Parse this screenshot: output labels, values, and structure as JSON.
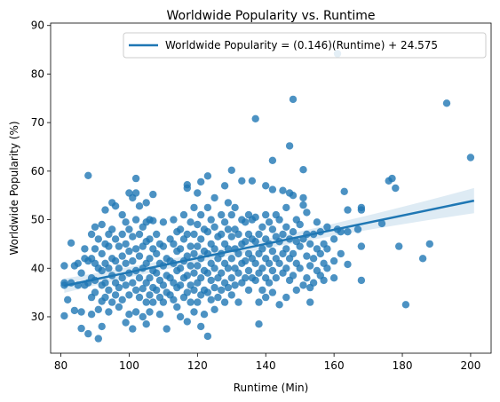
{
  "chart_data": {
    "type": "scatter",
    "title": "Worldwide Popularity vs. Runtime",
    "xlabel": "Runtime (Min)",
    "ylabel": "Worldwide Popularity (%)",
    "xlim": [
      77,
      206
    ],
    "ylim": [
      22.5,
      90.5
    ],
    "xticks": [
      80,
      100,
      120,
      140,
      160,
      180,
      200
    ],
    "yticks": [
      30,
      40,
      50,
      60,
      70,
      80,
      90
    ],
    "grid": false,
    "legend_position": "top-right",
    "colors": {
      "points": "#1f77b4",
      "line": "#1f77b4",
      "band": "#1f77b4"
    },
    "series": [
      {
        "name": "Worldwide Popularity = (0.146)(Runtime) + 24.575",
        "kind": "regression",
        "slope": 0.146,
        "intercept": 24.575,
        "x_range": [
          81,
          201
        ],
        "ci_half_width_low": 0.9,
        "ci_half_width_high": 2.6
      }
    ],
    "points": [
      [
        81,
        40.5
      ],
      [
        81,
        37
      ],
      [
        81,
        36.5
      ],
      [
        81,
        30.2
      ],
      [
        82,
        33.5
      ],
      [
        83,
        45.2
      ],
      [
        83,
        37
      ],
      [
        84,
        40.5
      ],
      [
        84,
        31.3
      ],
      [
        85,
        41
      ],
      [
        85,
        36.5
      ],
      [
        86,
        39
      ],
      [
        86,
        31
      ],
      [
        86,
        27.6
      ],
      [
        87,
        44
      ],
      [
        87,
        42
      ],
      [
        87,
        36.5
      ],
      [
        88,
        59.1
      ],
      [
        88,
        41.5
      ],
      [
        88,
        37
      ],
      [
        88,
        26.5
      ],
      [
        89,
        47
      ],
      [
        89,
        42
      ],
      [
        89,
        38
      ],
      [
        89,
        34
      ],
      [
        89,
        30.5
      ],
      [
        90,
        48.5
      ],
      [
        90,
        44
      ],
      [
        90,
        41
      ],
      [
        90,
        37.5
      ],
      [
        90,
        35
      ],
      [
        91,
        46
      ],
      [
        91,
        40
      ],
      [
        91,
        31.5
      ],
      [
        91,
        25.5
      ],
      [
        92,
        49
      ],
      [
        92,
        43
      ],
      [
        92,
        39.5
      ],
      [
        92,
        36.5
      ],
      [
        92,
        33.2
      ],
      [
        92,
        28
      ],
      [
        93,
        52
      ],
      [
        93,
        45
      ],
      [
        93,
        41
      ],
      [
        93,
        37
      ],
      [
        93,
        34
      ],
      [
        94,
        47
      ],
      [
        94,
        44.5
      ],
      [
        94,
        40
      ],
      [
        94,
        35.5
      ],
      [
        94,
        31
      ],
      [
        95,
        53.5
      ],
      [
        95,
        48
      ],
      [
        95,
        42
      ],
      [
        95,
        38.5
      ],
      [
        95,
        33
      ],
      [
        96,
        52.8
      ],
      [
        96,
        46
      ],
      [
        96,
        41.5
      ],
      [
        96,
        37
      ],
      [
        96,
        34.5
      ],
      [
        97,
        44.5
      ],
      [
        97,
        40
      ],
      [
        97,
        36
      ],
      [
        97,
        32
      ],
      [
        98,
        51
      ],
      [
        98,
        47
      ],
      [
        98,
        42.5
      ],
      [
        98,
        38
      ],
      [
        98,
        33.5
      ],
      [
        99,
        49.5
      ],
      [
        99,
        45
      ],
      [
        99,
        41
      ],
      [
        99,
        36.5
      ],
      [
        99,
        28.8
      ],
      [
        100,
        55.5
      ],
      [
        100,
        48
      ],
      [
        100,
        43.5
      ],
      [
        100,
        39
      ],
      [
        100,
        34.5
      ],
      [
        100,
        30.5
      ],
      [
        101,
        54.5
      ],
      [
        101,
        46.5
      ],
      [
        101,
        41.5
      ],
      [
        101,
        37
      ],
      [
        101,
        27.5
      ],
      [
        102,
        58.5
      ],
      [
        102,
        55.5
      ],
      [
        102,
        50
      ],
      [
        102,
        44
      ],
      [
        102,
        39.5
      ],
      [
        102,
        35.5
      ],
      [
        102,
        31
      ],
      [
        103,
        52.8
      ],
      [
        103,
        47
      ],
      [
        103,
        42.5
      ],
      [
        103,
        38
      ],
      [
        103,
        34
      ],
      [
        104,
        48.5
      ],
      [
        104,
        44.5
      ],
      [
        104,
        40
      ],
      [
        104,
        35.8
      ],
      [
        104,
        30
      ],
      [
        105,
        53.5
      ],
      [
        105,
        49.5
      ],
      [
        105,
        45.5
      ],
      [
        105,
        41
      ],
      [
        105,
        37
      ],
      [
        105,
        33
      ],
      [
        105,
        28.5
      ],
      [
        106,
        50
      ],
      [
        106,
        46
      ],
      [
        106,
        42
      ],
      [
        106,
        38
      ],
      [
        106,
        34.5
      ],
      [
        106,
        31
      ],
      [
        107,
        55.2
      ],
      [
        107,
        49.8
      ],
      [
        107,
        44
      ],
      [
        107,
        39.5
      ],
      [
        107,
        36
      ],
      [
        107,
        33
      ],
      [
        108,
        47
      ],
      [
        108,
        43
      ],
      [
        108,
        39
      ],
      [
        108,
        35.5
      ],
      [
        109,
        45
      ],
      [
        109,
        41
      ],
      [
        109,
        37.5
      ],
      [
        109,
        34
      ],
      [
        109,
        30.5
      ],
      [
        110,
        49.5
      ],
      [
        110,
        44.5
      ],
      [
        110,
        40.5
      ],
      [
        110,
        36.5
      ],
      [
        110,
        33
      ],
      [
        111,
        42
      ],
      [
        111,
        38.5
      ],
      [
        111,
        35
      ],
      [
        111,
        27.5
      ],
      [
        112,
        46
      ],
      [
        112,
        41.5
      ],
      [
        112,
        38
      ],
      [
        112,
        34.5
      ],
      [
        113,
        50
      ],
      [
        113,
        45
      ],
      [
        113,
        41
      ],
      [
        113,
        37
      ],
      [
        113,
        33.5
      ],
      [
        114,
        47.5
      ],
      [
        114,
        43.5
      ],
      [
        114,
        39.5
      ],
      [
        114,
        36
      ],
      [
        114,
        32
      ],
      [
        115,
        48
      ],
      [
        115,
        44
      ],
      [
        115,
        40
      ],
      [
        115,
        36.5
      ],
      [
        115,
        30
      ],
      [
        116,
        51
      ],
      [
        116,
        46
      ],
      [
        116,
        41.5
      ],
      [
        116,
        38
      ],
      [
        116,
        34
      ],
      [
        117,
        57.2
      ],
      [
        117,
        56.5
      ],
      [
        117,
        47
      ],
      [
        117,
        42.5
      ],
      [
        117,
        38.5
      ],
      [
        117,
        35
      ],
      [
        117,
        29
      ],
      [
        118,
        49.5
      ],
      [
        118,
        44.5
      ],
      [
        118,
        40.5
      ],
      [
        118,
        36.5
      ],
      [
        118,
        33
      ],
      [
        119,
        52.5
      ],
      [
        119,
        47
      ],
      [
        119,
        43
      ],
      [
        119,
        39
      ],
      [
        119,
        35.5
      ],
      [
        119,
        31
      ],
      [
        120,
        55.5
      ],
      [
        120,
        49
      ],
      [
        120,
        44.5
      ],
      [
        120,
        40.5
      ],
      [
        120,
        37
      ],
      [
        120,
        33
      ],
      [
        121,
        57.8
      ],
      [
        121,
        51
      ],
      [
        121,
        46
      ],
      [
        121,
        42
      ],
      [
        121,
        38
      ],
      [
        121,
        34.5
      ],
      [
        121,
        28
      ],
      [
        122,
        48
      ],
      [
        122,
        43.5
      ],
      [
        122,
        39.5
      ],
      [
        122,
        35.5
      ],
      [
        122,
        30.5
      ],
      [
        123,
        59
      ],
      [
        123,
        52.5
      ],
      [
        123,
        47.5
      ],
      [
        123,
        43
      ],
      [
        123,
        39
      ],
      [
        123,
        35
      ],
      [
        123,
        26
      ],
      [
        124,
        50
      ],
      [
        124,
        45
      ],
      [
        124,
        41
      ],
      [
        124,
        37.5
      ],
      [
        124,
        33.5
      ],
      [
        125,
        54.5
      ],
      [
        125,
        48.5
      ],
      [
        125,
        44
      ],
      [
        125,
        40
      ],
      [
        125,
        36
      ],
      [
        125,
        31.5
      ],
      [
        126,
        46.5
      ],
      [
        126,
        42
      ],
      [
        126,
        38
      ],
      [
        126,
        34
      ],
      [
        127,
        51
      ],
      [
        127,
        47
      ],
      [
        127,
        43
      ],
      [
        127,
        39
      ],
      [
        127,
        35.5
      ],
      [
        128,
        57
      ],
      [
        128,
        49.5
      ],
      [
        128,
        45
      ],
      [
        128,
        41
      ],
      [
        128,
        37
      ],
      [
        128,
        33
      ],
      [
        129,
        53.5
      ],
      [
        129,
        48
      ],
      [
        129,
        44
      ],
      [
        129,
        40
      ],
      [
        129,
        36
      ],
      [
        130,
        60.2
      ],
      [
        130,
        51
      ],
      [
        130,
        46.5
      ],
      [
        130,
        42
      ],
      [
        130,
        38
      ],
      [
        130,
        34.5
      ],
      [
        131,
        52.5
      ],
      [
        131,
        48
      ],
      [
        131,
        44
      ],
      [
        131,
        40
      ],
      [
        131,
        36.5
      ],
      [
        132,
        47
      ],
      [
        132,
        43
      ],
      [
        132,
        39
      ],
      [
        132,
        33
      ],
      [
        133,
        58
      ],
      [
        133,
        50
      ],
      [
        133,
        45
      ],
      [
        133,
        41
      ],
      [
        133,
        37
      ],
      [
        134,
        49.5
      ],
      [
        134,
        45.5
      ],
      [
        134,
        41.5
      ],
      [
        134,
        38
      ],
      [
        135,
        51
      ],
      [
        135,
        47
      ],
      [
        135,
        43
      ],
      [
        135,
        39.5
      ],
      [
        135,
        35.5
      ],
      [
        136,
        58
      ],
      [
        136,
        50
      ],
      [
        136,
        46
      ],
      [
        136,
        42
      ],
      [
        136,
        38
      ],
      [
        137,
        70.8
      ],
      [
        137,
        50.5
      ],
      [
        137,
        45.5
      ],
      [
        137,
        41
      ],
      [
        137,
        37.5
      ],
      [
        138,
        47
      ],
      [
        138,
        43
      ],
      [
        138,
        39
      ],
      [
        138,
        33
      ],
      [
        138,
        28.5
      ],
      [
        139,
        48.5
      ],
      [
        139,
        44
      ],
      [
        139,
        40
      ],
      [
        139,
        35.5
      ],
      [
        140,
        57
      ],
      [
        140,
        51
      ],
      [
        140,
        46
      ],
      [
        140,
        42
      ],
      [
        140,
        38
      ],
      [
        140,
        34
      ],
      [
        141,
        49.5
      ],
      [
        141,
        45
      ],
      [
        141,
        41
      ],
      [
        141,
        37
      ],
      [
        142,
        62.2
      ],
      [
        142,
        56.2
      ],
      [
        142,
        48
      ],
      [
        142,
        43.5
      ],
      [
        142,
        39.5
      ],
      [
        142,
        35
      ],
      [
        143,
        51
      ],
      [
        143,
        46.5
      ],
      [
        143,
        42
      ],
      [
        143,
        38
      ],
      [
        144,
        50
      ],
      [
        144,
        45.5
      ],
      [
        144,
        41
      ],
      [
        144,
        32.5
      ],
      [
        145,
        56
      ],
      [
        145,
        47
      ],
      [
        145,
        43
      ],
      [
        145,
        39
      ],
      [
        146,
        52.5
      ],
      [
        146,
        48.5
      ],
      [
        146,
        44
      ],
      [
        146,
        40
      ],
      [
        146,
        34
      ],
      [
        147,
        65.2
      ],
      [
        147,
        55.5
      ],
      [
        147,
        46
      ],
      [
        147,
        42
      ],
      [
        147,
        37.5
      ],
      [
        148,
        74.8
      ],
      [
        148,
        55
      ],
      [
        148,
        47.5
      ],
      [
        148,
        43
      ],
      [
        148,
        38.5
      ],
      [
        149,
        50
      ],
      [
        149,
        45.5
      ],
      [
        149,
        41
      ],
      [
        149,
        35.5
      ],
      [
        150,
        49
      ],
      [
        150,
        44.5
      ],
      [
        150,
        40
      ],
      [
        151,
        60.3
      ],
      [
        151,
        54.5
      ],
      [
        151,
        53
      ],
      [
        151,
        46
      ],
      [
        151,
        36.5
      ],
      [
        152,
        51.5
      ],
      [
        152,
        47
      ],
      [
        152,
        42.5
      ],
      [
        152,
        38
      ],
      [
        153,
        45
      ],
      [
        153,
        40.5
      ],
      [
        153,
        36
      ],
      [
        153,
        33
      ],
      [
        154,
        47
      ],
      [
        154,
        42
      ],
      [
        154,
        37
      ],
      [
        155,
        49.5
      ],
      [
        155,
        44
      ],
      [
        155,
        39.5
      ],
      [
        156,
        47.5
      ],
      [
        156,
        43
      ],
      [
        156,
        38.5
      ],
      [
        157,
        45
      ],
      [
        157,
        41
      ],
      [
        157,
        37.5
      ],
      [
        158,
        48.5
      ],
      [
        158,
        44
      ],
      [
        158,
        40
      ],
      [
        160,
        46
      ],
      [
        160,
        41.5
      ],
      [
        160,
        38
      ],
      [
        161,
        84.2
      ],
      [
        161,
        48
      ],
      [
        162,
        47.5
      ],
      [
        162,
        43
      ],
      [
        163,
        55.8
      ],
      [
        164,
        52
      ],
      [
        164,
        47.5
      ],
      [
        164,
        40.8
      ],
      [
        167,
        48
      ],
      [
        168,
        52.5
      ],
      [
        168,
        52
      ],
      [
        168,
        44.5
      ],
      [
        168,
        37.5
      ],
      [
        174,
        49.2
      ],
      [
        176,
        58
      ],
      [
        177,
        58.5
      ],
      [
        178,
        56.5
      ],
      [
        179,
        44.5
      ],
      [
        181,
        32.5
      ],
      [
        186,
        42
      ],
      [
        188,
        45
      ],
      [
        193,
        74
      ],
      [
        200,
        62.8
      ]
    ]
  }
}
